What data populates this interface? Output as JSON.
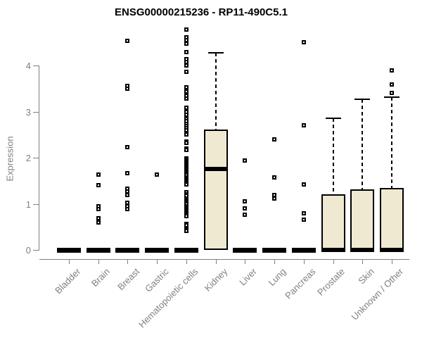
{
  "colors": {
    "box_fill": "#EFE9D2",
    "box_border": "#000000",
    "axis": "#808080",
    "tick_label": "#808080",
    "title": "#000000",
    "background": "#FFFFFF"
  },
  "chart_data": {
    "type": "boxplot",
    "title": "ENSG00000215236 - RP11-490C5.1",
    "xlabel": "",
    "ylabel": "Expression",
    "ylim": [
      0,
      4.8
    ],
    "yticks": [
      0,
      1,
      2,
      3,
      4
    ],
    "grid": false,
    "legend": false,
    "categories": [
      "Bladder",
      "Brain",
      "Breast",
      "Gastric",
      "Hematopoietic cells",
      "Kidney",
      "Liver",
      "Lung",
      "Pancreas",
      "Prostate",
      "Skin",
      "Unknown / Other"
    ],
    "boxes": [
      {
        "category": "Bladder",
        "whisker_low": 0,
        "q1": 0,
        "median": 0,
        "q3": 0,
        "whisker_high": 0,
        "outliers": []
      },
      {
        "category": "Brain",
        "whisker_low": 0,
        "q1": 0,
        "median": 0,
        "q3": 0,
        "whisker_high": 0,
        "outliers": [
          1.63,
          1.4,
          0.95,
          0.88,
          0.69,
          0.59
        ]
      },
      {
        "category": "Breast",
        "whisker_low": 0,
        "q1": 0,
        "median": 0,
        "q3": 0,
        "whisker_high": 0,
        "outliers": [
          4.53,
          3.56,
          3.5,
          2.23,
          1.66,
          1.33,
          1.26,
          1.19,
          1.02,
          0.95,
          0.88
        ]
      },
      {
        "category": "Gastric",
        "whisker_low": 0,
        "q1": 0,
        "median": 0,
        "q3": 0,
        "whisker_high": 0,
        "outliers": [
          1.63
        ]
      },
      {
        "category": "Hematopoietic cells",
        "whisker_low": 0,
        "q1": 0,
        "median": 0,
        "q3": 0,
        "whisker_high": 0,
        "outliers": [
          4.78,
          4.61,
          4.55,
          4.47,
          4.29,
          4.14,
          4.07,
          4.0,
          3.86,
          3.52,
          3.43,
          3.35,
          3.28,
          3.08,
          3.0,
          2.93,
          2.84,
          2.79,
          2.74,
          2.69,
          2.64,
          2.59,
          2.54,
          2.5,
          2.35,
          2.32,
          2.2,
          2.17,
          1.98,
          1.95,
          1.92,
          1.89,
          1.86,
          1.83,
          1.8,
          1.77,
          1.74,
          1.71,
          1.68,
          1.65,
          1.62,
          1.57,
          1.54,
          1.51,
          1.48,
          1.45,
          1.42,
          1.25,
          1.21,
          1.18,
          1.11,
          1.08,
          1.05,
          1.02,
          0.99,
          0.95,
          0.92,
          0.89,
          0.86,
          0.83,
          0.8,
          0.77,
          0.74,
          0.56,
          0.53,
          0.44,
          0.41
        ],
        "note": "dense stack of outlier points"
      },
      {
        "category": "Kidney",
        "whisker_low": 0,
        "q1": 0,
        "median": 1.75,
        "q3": 2.61,
        "whisker_high": 4.27,
        "outliers": []
      },
      {
        "category": "Liver",
        "whisker_low": 0,
        "q1": 0,
        "median": 0,
        "q3": 0,
        "whisker_high": 0,
        "outliers": [
          1.94,
          1.05,
          0.9,
          0.76
        ]
      },
      {
        "category": "Lung",
        "whisker_low": 0,
        "q1": 0,
        "median": 0,
        "q3": 0,
        "whisker_high": 0,
        "outliers": [
          2.39,
          1.57,
          1.19,
          1.11
        ]
      },
      {
        "category": "Pancreas",
        "whisker_low": 0,
        "q1": 0,
        "median": 0,
        "q3": 0,
        "whisker_high": 0,
        "outliers": [
          4.5,
          2.7,
          1.42,
          0.79,
          0.65
        ]
      },
      {
        "category": "Prostate",
        "whisker_low": 0,
        "q1": 0,
        "median": 0,
        "q3": 1.21,
        "whisker_high": 2.85,
        "outliers": []
      },
      {
        "category": "Skin",
        "whisker_low": 0,
        "q1": 0,
        "median": 0,
        "q3": 1.31,
        "whisker_high": 3.27,
        "outliers": []
      },
      {
        "category": "Unknown / Other",
        "whisker_low": 0,
        "q1": 0,
        "median": 0,
        "q3": 1.34,
        "whisker_high": 3.31,
        "outliers": [
          3.89,
          3.59,
          3.4
        ]
      }
    ]
  }
}
